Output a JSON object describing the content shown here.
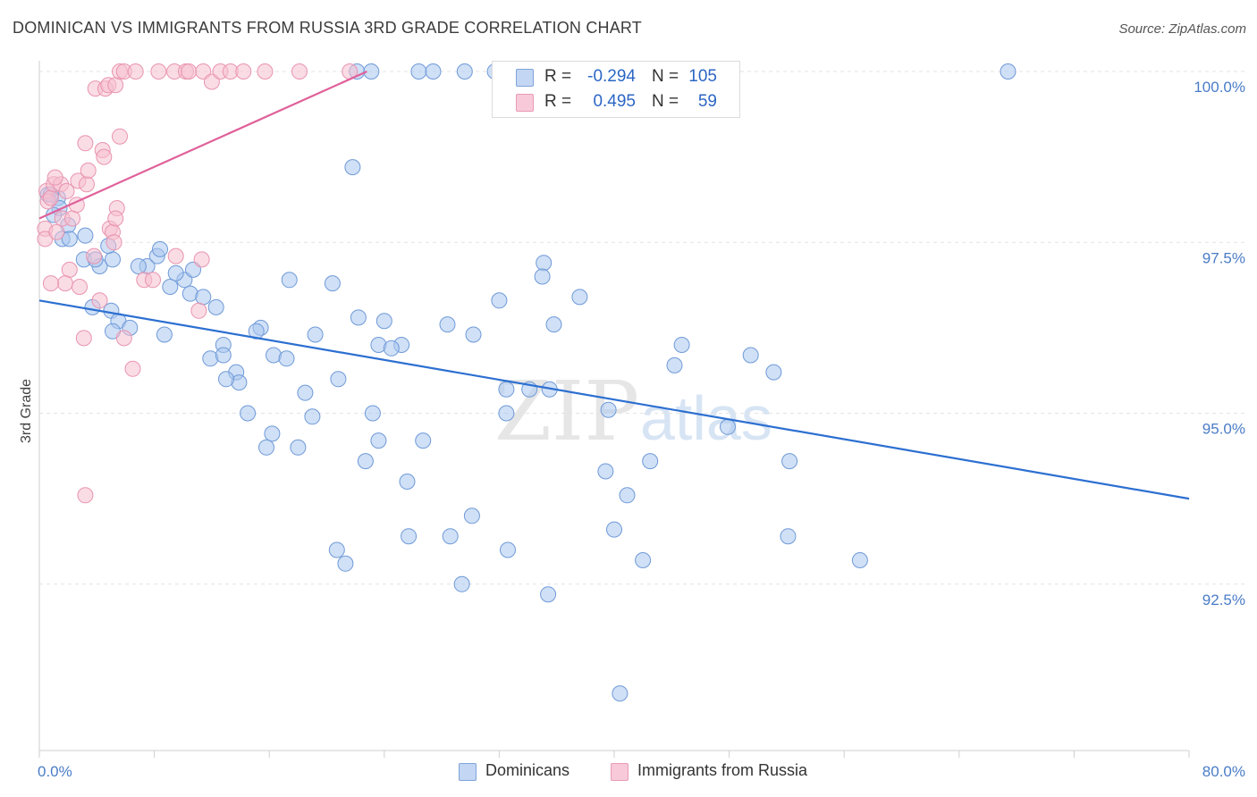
{
  "header": {
    "title": "DOMINICAN VS IMMIGRANTS FROM RUSSIA 3RD GRADE CORRELATION CHART",
    "source": "Source: ZipAtlas.com"
  },
  "legend": {
    "rows": [
      {
        "r_label": "R =",
        "r_value": "-0.294",
        "n_label": "N =",
        "n_value": "105"
      },
      {
        "r_label": "R =",
        "r_value": "0.495",
        "n_label": "N =",
        "n_value": "59"
      }
    ]
  },
  "bottom_legend": {
    "items": [
      {
        "label": "Dominicans"
      },
      {
        "label": "Immigrants from Russia"
      }
    ]
  },
  "watermark": {
    "zip": "ZIP",
    "atlas": "atlas"
  },
  "colors": {
    "blue_fill": "#a9c6ee",
    "blue_stroke": "#6f9ad8",
    "blue_line": "#2c6fd1",
    "pink_fill": "#f6bfd0",
    "pink_stroke": "#e994b0",
    "pink_line": "#e0609a",
    "tick_label": "#4a7cc7"
  },
  "chart_data": {
    "type": "scatter",
    "title": "DOMINICAN VS IMMIGRANTS FROM RUSSIA 3RD GRADE CORRELATION CHART",
    "xlabel": "",
    "ylabel": "3rd Grade",
    "xlim": [
      0,
      80
    ],
    "ylim": [
      90.0,
      100.2
    ],
    "x_tick_labels": [
      "0.0%",
      "80.0%"
    ],
    "y_ticks": [
      92.5,
      95.0,
      97.5,
      100.0
    ],
    "y_tick_labels": [
      "92.5%",
      "95.0%",
      "97.5%",
      "100.0%"
    ],
    "grid": true,
    "legend_position": "top-center",
    "series": [
      {
        "name": "Dominicans",
        "color": "#a9c6ee",
        "trend": {
          "x": [
            0,
            80
          ],
          "y": [
            96.65,
            93.75
          ]
        },
        "points": [
          [
            1.3,
            98.15
          ],
          [
            1.4,
            98.0
          ],
          [
            2.0,
            97.75
          ],
          [
            1.6,
            97.55
          ],
          [
            2.1,
            97.55
          ],
          [
            3.2,
            97.6
          ],
          [
            3.1,
            97.25
          ],
          [
            4.2,
            97.15
          ],
          [
            3.9,
            97.25
          ],
          [
            5.1,
            97.25
          ],
          [
            7.5,
            97.15
          ],
          [
            6.9,
            97.15
          ],
          [
            8.2,
            97.3
          ],
          [
            8.4,
            97.4
          ],
          [
            9.1,
            96.85
          ],
          [
            10.1,
            96.95
          ],
          [
            9.5,
            97.05
          ],
          [
            10.7,
            97.1
          ],
          [
            10.5,
            96.75
          ],
          [
            11.4,
            96.7
          ],
          [
            12.3,
            96.55
          ],
          [
            3.7,
            96.55
          ],
          [
            5.0,
            96.5
          ],
          [
            5.5,
            96.35
          ],
          [
            5.1,
            96.2
          ],
          [
            6.3,
            96.25
          ],
          [
            8.7,
            96.15
          ],
          [
            12.8,
            96.0
          ],
          [
            11.9,
            95.8
          ],
          [
            12.8,
            95.85
          ],
          [
            13.7,
            95.6
          ],
          [
            13.9,
            95.45
          ],
          [
            13.0,
            95.5
          ],
          [
            15.4,
            96.25
          ],
          [
            15.1,
            96.2
          ],
          [
            14.5,
            95.0
          ],
          [
            16.3,
            95.85
          ],
          [
            17.2,
            95.8
          ],
          [
            16.2,
            94.7
          ],
          [
            15.8,
            94.5
          ],
          [
            18.0,
            94.5
          ],
          [
            17.4,
            96.95
          ],
          [
            18.5,
            95.3
          ],
          [
            19.2,
            96.15
          ],
          [
            20.4,
            96.9
          ],
          [
            20.8,
            95.5
          ],
          [
            19.0,
            94.95
          ],
          [
            20.7,
            93.0
          ],
          [
            21.3,
            92.8
          ],
          [
            22.2,
            96.4
          ],
          [
            23.6,
            96.0
          ],
          [
            23.2,
            95.0
          ],
          [
            23.6,
            94.6
          ],
          [
            24.0,
            96.35
          ],
          [
            22.7,
            94.3
          ],
          [
            25.2,
            96.0
          ],
          [
            24.5,
            95.95
          ],
          [
            25.7,
            93.2
          ],
          [
            25.6,
            94.0
          ],
          [
            26.7,
            94.6
          ],
          [
            28.6,
            93.2
          ],
          [
            28.4,
            96.3
          ],
          [
            30.1,
            93.5
          ],
          [
            29.4,
            92.5
          ],
          [
            30.2,
            96.15
          ],
          [
            32.5,
            95.35
          ],
          [
            32.5,
            95.0
          ],
          [
            32.0,
            96.65
          ],
          [
            32.6,
            93.0
          ],
          [
            34.1,
            95.35
          ],
          [
            35.1,
            97.2
          ],
          [
            35.0,
            97.0
          ],
          [
            35.5,
            95.35
          ],
          [
            35.8,
            96.3
          ],
          [
            35.4,
            92.35
          ],
          [
            37.6,
            96.7
          ],
          [
            39.6,
            95.05
          ],
          [
            39.4,
            94.15
          ],
          [
            40.0,
            93.3
          ],
          [
            40.4,
            90.9
          ],
          [
            40.9,
            93.8
          ],
          [
            42.0,
            92.85
          ],
          [
            42.5,
            94.3
          ],
          [
            44.2,
            95.7
          ],
          [
            44.7,
            96.0
          ],
          [
            47.9,
            94.8
          ],
          [
            49.5,
            95.85
          ],
          [
            51.1,
            95.6
          ],
          [
            52.1,
            93.2
          ],
          [
            52.2,
            94.3
          ],
          [
            57.1,
            92.85
          ],
          [
            67.4,
            100.0
          ],
          [
            31.7,
            100.0
          ],
          [
            38.5,
            100.0
          ],
          [
            33.4,
            100.0
          ],
          [
            26.4,
            100.0
          ],
          [
            27.4,
            100.0
          ],
          [
            29.6,
            100.0
          ],
          [
            22.1,
            100.0
          ],
          [
            23.1,
            100.0
          ],
          [
            21.8,
            98.6
          ],
          [
            0.6,
            98.2
          ],
          [
            0.8,
            98.2
          ],
          [
            1.0,
            97.9
          ],
          [
            4.8,
            97.45
          ]
        ]
      },
      {
        "name": "Immigrants from Russia",
        "color": "#f6bfd0",
        "trend": {
          "x": [
            0,
            22.8
          ],
          "y": [
            97.85,
            100.0
          ]
        },
        "points": [
          [
            0.4,
            97.7
          ],
          [
            0.4,
            97.55
          ],
          [
            0.5,
            98.25
          ],
          [
            0.6,
            98.1
          ],
          [
            0.8,
            98.15
          ],
          [
            1.0,
            98.35
          ],
          [
            1.2,
            97.65
          ],
          [
            1.5,
            98.35
          ],
          [
            1.1,
            98.45
          ],
          [
            1.6,
            97.85
          ],
          [
            1.9,
            98.25
          ],
          [
            2.3,
            97.85
          ],
          [
            2.6,
            98.05
          ],
          [
            2.7,
            98.4
          ],
          [
            3.3,
            98.35
          ],
          [
            3.2,
            98.95
          ],
          [
            3.4,
            98.55
          ],
          [
            4.4,
            98.85
          ],
          [
            4.5,
            98.75
          ],
          [
            4.9,
            97.7
          ],
          [
            5.1,
            97.65
          ],
          [
            5.4,
            98.0
          ],
          [
            5.3,
            97.85
          ],
          [
            5.6,
            99.05
          ],
          [
            5.2,
            97.5
          ],
          [
            3.8,
            97.3
          ],
          [
            2.1,
            97.1
          ],
          [
            1.8,
            96.9
          ],
          [
            0.8,
            96.9
          ],
          [
            2.8,
            96.85
          ],
          [
            4.2,
            96.65
          ],
          [
            7.3,
            96.95
          ],
          [
            7.9,
            96.95
          ],
          [
            9.5,
            97.3
          ],
          [
            11.3,
            97.25
          ],
          [
            11.1,
            96.5
          ],
          [
            3.1,
            96.1
          ],
          [
            5.9,
            96.1
          ],
          [
            6.5,
            95.65
          ],
          [
            3.2,
            93.8
          ],
          [
            3.9,
            99.75
          ],
          [
            4.6,
            99.75
          ],
          [
            4.8,
            99.8
          ],
          [
            5.3,
            99.8
          ],
          [
            5.6,
            100.0
          ],
          [
            5.9,
            100.0
          ],
          [
            6.7,
            100.0
          ],
          [
            8.3,
            100.0
          ],
          [
            9.4,
            100.0
          ],
          [
            10.2,
            100.0
          ],
          [
            10.4,
            100.0
          ],
          [
            11.4,
            100.0
          ],
          [
            12.0,
            99.85
          ],
          [
            12.6,
            100.0
          ],
          [
            13.3,
            100.0
          ],
          [
            14.2,
            100.0
          ],
          [
            15.7,
            100.0
          ],
          [
            18.1,
            100.0
          ],
          [
            21.6,
            100.0
          ]
        ]
      }
    ]
  }
}
